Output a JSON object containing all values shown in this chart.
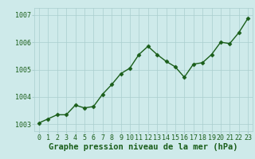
{
  "x": [
    0,
    1,
    2,
    3,
    4,
    5,
    6,
    7,
    8,
    9,
    10,
    11,
    12,
    13,
    14,
    15,
    16,
    17,
    18,
    19,
    20,
    21,
    22,
    23
  ],
  "y": [
    1003.05,
    1003.2,
    1003.35,
    1003.35,
    1003.7,
    1003.6,
    1003.65,
    1004.1,
    1004.45,
    1004.85,
    1005.05,
    1005.55,
    1005.85,
    1005.55,
    1005.3,
    1005.1,
    1004.72,
    1005.2,
    1005.25,
    1005.55,
    1006.0,
    1005.95,
    1006.35,
    1006.87
  ],
  "line_color": "#1a5e1a",
  "marker": "D",
  "marker_size": 2.5,
  "background_color": "#ceeaea",
  "grid_color": "#aacece",
  "xlabel": "Graphe pression niveau de la mer (hPa)",
  "xlabel_fontsize": 7.5,
  "ylim": [
    1002.75,
    1007.25
  ],
  "yticks": [
    1003,
    1004,
    1005,
    1006,
    1007
  ],
  "xticks": [
    0,
    1,
    2,
    3,
    4,
    5,
    6,
    7,
    8,
    9,
    10,
    11,
    12,
    13,
    14,
    15,
    16,
    17,
    18,
    19,
    20,
    21,
    22,
    23
  ],
  "tick_fontsize": 6,
  "line_width": 1.0,
  "axis_label_color": "#1a5e1a",
  "tick_color": "#1a5e1a"
}
